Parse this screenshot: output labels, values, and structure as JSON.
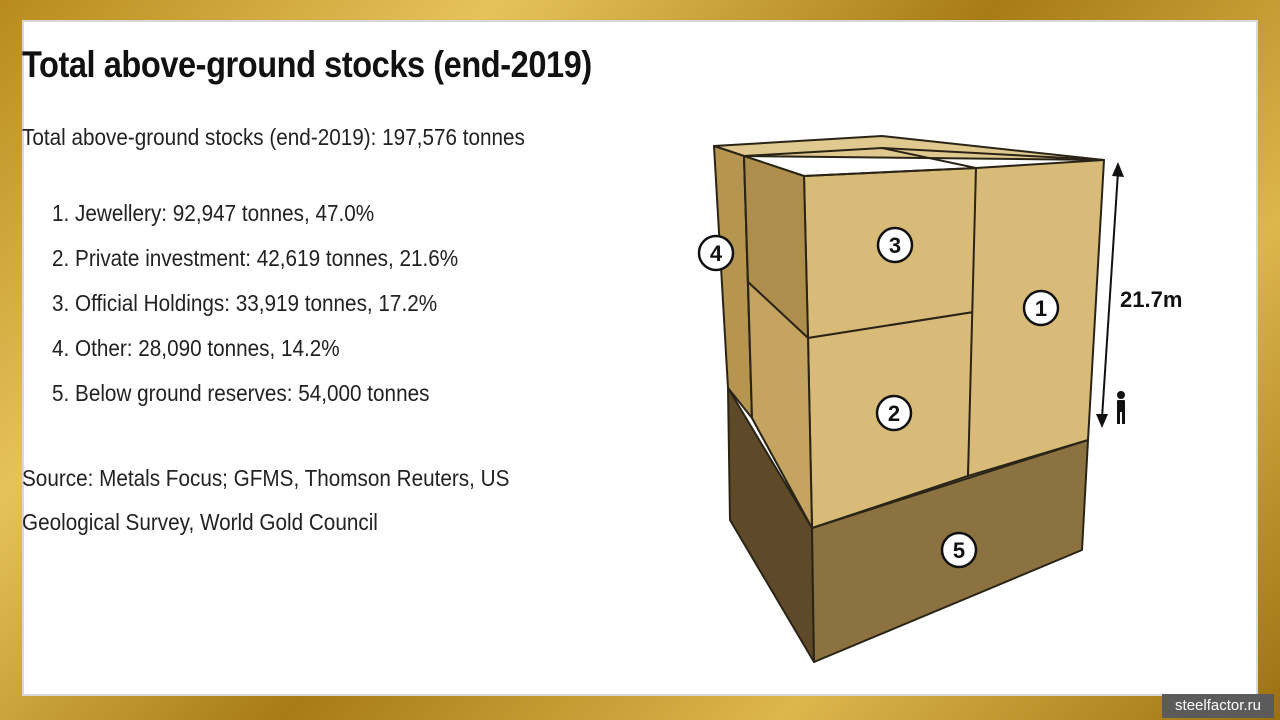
{
  "slide": {
    "title": "Total above-ground stocks (end-2019)",
    "subtitle": "Total above-ground stocks (end-2019): 197,576 tonnes",
    "items": [
      "1. Jewellery: 92,947 tonnes, 47.0%",
      "2. Private investment: 42,619 tonnes, 21.6%",
      "3. Official Holdings: 33,919 tonnes, 17.2%",
      "4. Other: 28,090 tonnes, 14.2%",
      "5. Below ground reserves: 54,000 tonnes"
    ],
    "source": "Source: Metals Focus; GFMS, Thomson Reuters, US Geological Survey, World Gold Council"
  },
  "diagram": {
    "height_label": "21.7m",
    "block_labels": [
      "1",
      "2",
      "3",
      "4",
      "5"
    ],
    "icons": [
      "person-icon"
    ],
    "colors": {
      "gold_light": "#d8bb78",
      "gold_mid": "#c4a460",
      "gold_dark": "#ad8e4c",
      "below_ground_front": "#8b7240",
      "below_ground_side": "#5e4a28"
    }
  },
  "watermark": "steelfactor.ru"
}
